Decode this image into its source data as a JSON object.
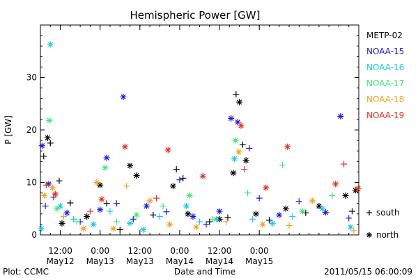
{
  "chart_data": {
    "type": "scatter",
    "title": "Hemispheric Power [GW]",
    "ylabel": "P [GW]",
    "xlabel": "Date and Time",
    "ylim": [
      0,
      40
    ],
    "yticks": [
      0,
      10,
      20,
      30
    ],
    "x_time_range": [
      "2011-05-11 06:00",
      "2011-05-15 06:00"
    ],
    "xticks": [
      {
        "time": "2011-05-11 12:00",
        "line1": "12:00",
        "line2": "May12"
      },
      {
        "time": "2011-05-12 00:00",
        "line1": "0:00",
        "line2": "May13"
      },
      {
        "time": "2011-05-12 12:00",
        "line1": "12:00",
        "line2": "May13"
      },
      {
        "time": "2011-05-13 00:00",
        "line1": "0:00",
        "line2": "May14"
      },
      {
        "time": "2011-05-13 12:00",
        "line1": "12:00",
        "line2": "May14"
      },
      {
        "time": "2011-05-14 00:00",
        "line1": "0:00",
        "line2": "May15"
      }
    ],
    "legend_placement": "right",
    "marker_legend": [
      {
        "marker": "plus",
        "label": "south"
      },
      {
        "marker": "asterisk",
        "label": "north"
      }
    ],
    "series": [
      {
        "name": "METP-02",
        "color": "#000000",
        "points": [
          {
            "t": "2011-05-11 07:00",
            "v": 15,
            "m": "plus"
          },
          {
            "t": "2011-05-11 08:10",
            "v": 18.5,
            "m": "asterisk"
          },
          {
            "t": "2011-05-11 09:00",
            "v": 17.5,
            "m": "plus"
          },
          {
            "t": "2011-05-11 11:40",
            "v": 10.3,
            "m": "plus"
          },
          {
            "t": "2011-05-11 12:30",
            "v": 2.2,
            "m": "asterisk"
          },
          {
            "t": "2011-05-11 15:00",
            "v": 6.1,
            "m": "plus"
          },
          {
            "t": "2011-05-11 20:00",
            "v": 3.5,
            "m": "asterisk"
          },
          {
            "t": "2011-05-12 02:00",
            "v": 6.0,
            "m": "plus"
          },
          {
            "t": "2011-05-12 00:00",
            "v": 9.5,
            "m": "asterisk"
          },
          {
            "t": "2011-05-12 06:00",
            "v": 1.0,
            "m": "plus"
          },
          {
            "t": "2011-05-12 09:00",
            "v": 13.2,
            "m": "asterisk"
          },
          {
            "t": "2011-05-12 11:00",
            "v": 11.3,
            "m": "asterisk"
          },
          {
            "t": "2011-05-12 16:00",
            "v": 3.8,
            "m": "plus"
          },
          {
            "t": "2011-05-12 22:00",
            "v": 9.3,
            "m": "asterisk"
          },
          {
            "t": "2011-05-12 23:00",
            "v": 12.5,
            "m": "plus"
          },
          {
            "t": "2011-05-13 01:00",
            "v": 10.8,
            "m": "plus"
          },
          {
            "t": "2011-05-13 02:30",
            "v": 4.0,
            "m": "asterisk"
          },
          {
            "t": "2011-05-13 09:00",
            "v": 2.5,
            "m": "plus"
          },
          {
            "t": "2011-05-13 12:00",
            "v": 3.0,
            "m": "asterisk"
          },
          {
            "t": "2011-05-13 14:30",
            "v": 3.3,
            "m": "plus"
          },
          {
            "t": "2011-05-13 16:10",
            "v": 11.8,
            "m": "asterisk"
          },
          {
            "t": "2011-05-13 17:00",
            "v": 26.8,
            "m": "plus"
          },
          {
            "t": "2011-05-13 18:00",
            "v": 25.3,
            "m": "asterisk"
          },
          {
            "t": "2011-05-13 19:00",
            "v": 17.2,
            "m": "plus"
          },
          {
            "t": "2011-05-13 20:00",
            "v": 14.2,
            "m": "asterisk"
          },
          {
            "t": "2011-05-13 23:00",
            "v": 4.0,
            "m": "asterisk"
          },
          {
            "t": "2011-05-14 03:00",
            "v": 2.8,
            "m": "plus"
          },
          {
            "t": "2011-05-14 08:00",
            "v": 5.0,
            "m": "asterisk"
          },
          {
            "t": "2011-05-14 14:00",
            "v": 4.2,
            "m": "plus"
          },
          {
            "t": "2011-05-14 18:00",
            "v": 5.5,
            "m": "asterisk"
          },
          {
            "t": "2011-05-15 02:00",
            "v": 7.5,
            "m": "asterisk"
          },
          {
            "t": "2011-05-15 04:00",
            "v": 4.5,
            "m": "plus"
          },
          {
            "t": "2011-05-15 05:00",
            "v": 8.5,
            "m": "asterisk"
          }
        ]
      },
      {
        "name": "NOAA-15",
        "color": "#1a1ae0",
        "points": [
          {
            "t": "2011-05-11 06:30",
            "v": 17.0,
            "m": "asterisk"
          },
          {
            "t": "2011-05-11 07:30",
            "v": 5.5,
            "m": "plus"
          },
          {
            "t": "2011-05-11 08:30",
            "v": 9.7,
            "m": "asterisk"
          },
          {
            "t": "2011-05-11 10:00",
            "v": 7.2,
            "m": "plus"
          },
          {
            "t": "2011-05-11 14:00",
            "v": 4.2,
            "m": "asterisk"
          },
          {
            "t": "2011-05-11 18:00",
            "v": 2.5,
            "m": "plus"
          },
          {
            "t": "2011-05-12 00:00",
            "v": 4.8,
            "m": "asterisk"
          },
          {
            "t": "2011-05-12 02:00",
            "v": 14.7,
            "m": "asterisk"
          },
          {
            "t": "2011-05-12 05:00",
            "v": 6.0,
            "m": "plus"
          },
          {
            "t": "2011-05-12 07:00",
            "v": 26.3,
            "m": "asterisk"
          },
          {
            "t": "2011-05-12 10:00",
            "v": 3.0,
            "m": "plus"
          },
          {
            "t": "2011-05-12 14:00",
            "v": 5.5,
            "m": "asterisk"
          },
          {
            "t": "2011-05-12 20:00",
            "v": 4.4,
            "m": "plus"
          },
          {
            "t": "2011-05-13 00:00",
            "v": 10.5,
            "m": "plus"
          },
          {
            "t": "2011-05-13 04:00",
            "v": 3.5,
            "m": "asterisk"
          },
          {
            "t": "2011-05-13 08:00",
            "v": 2.0,
            "m": "plus"
          },
          {
            "t": "2011-05-13 12:00",
            "v": 4.5,
            "m": "asterisk"
          },
          {
            "t": "2011-05-13 15:30",
            "v": 22.2,
            "m": "asterisk"
          },
          {
            "t": "2011-05-13 17:30",
            "v": 21.5,
            "m": "asterisk"
          },
          {
            "t": "2011-05-13 21:00",
            "v": 16.5,
            "m": "plus"
          },
          {
            "t": "2011-05-14 00:00",
            "v": 7.0,
            "m": "plus"
          },
          {
            "t": "2011-05-14 06:00",
            "v": 3.8,
            "m": "asterisk"
          },
          {
            "t": "2011-05-14 12:00",
            "v": 6.4,
            "m": "plus"
          },
          {
            "t": "2011-05-14 20:00",
            "v": 4.3,
            "m": "asterisk"
          },
          {
            "t": "2011-05-15 00:30",
            "v": 22.6,
            "m": "asterisk"
          },
          {
            "t": "2011-05-15 03:00",
            "v": 3.2,
            "m": "plus"
          }
        ]
      },
      {
        "name": "NOAA-16",
        "color": "#19c8e8",
        "points": [
          {
            "t": "2011-05-11 06:15",
            "v": 1.2,
            "m": "asterisk"
          },
          {
            "t": "2011-05-11 09:00",
            "v": 36.3,
            "m": "asterisk"
          },
          {
            "t": "2011-05-11 12:00",
            "v": 5.5,
            "m": "asterisk"
          },
          {
            "t": "2011-05-11 16:00",
            "v": 3.0,
            "m": "plus"
          },
          {
            "t": "2011-05-11 22:00",
            "v": 2.0,
            "m": "asterisk"
          },
          {
            "t": "2011-05-12 03:00",
            "v": 4.5,
            "m": "plus"
          },
          {
            "t": "2011-05-12 09:00",
            "v": 2.2,
            "m": "asterisk"
          },
          {
            "t": "2011-05-12 13:00",
            "v": 1.0,
            "m": "asterisk"
          },
          {
            "t": "2011-05-12 18:00",
            "v": 3.5,
            "m": "plus"
          },
          {
            "t": "2011-05-13 02:00",
            "v": 5.5,
            "m": "asterisk"
          },
          {
            "t": "2011-05-13 06:00",
            "v": 2.5,
            "m": "plus"
          },
          {
            "t": "2011-05-13 11:00",
            "v": 3.0,
            "m": "asterisk"
          },
          {
            "t": "2011-05-13 16:30",
            "v": 14.5,
            "m": "asterisk"
          },
          {
            "t": "2011-05-13 22:00",
            "v": 3.0,
            "m": "plus"
          },
          {
            "t": "2011-05-14 04:00",
            "v": 2.2,
            "m": "asterisk"
          },
          {
            "t": "2011-05-14 10:00",
            "v": 3.5,
            "m": "plus"
          },
          {
            "t": "2011-05-14 19:00",
            "v": 5.0,
            "m": "asterisk"
          },
          {
            "t": "2011-05-15 03:30",
            "v": 1.5,
            "m": "asterisk"
          }
        ]
      },
      {
        "name": "NOAA-17",
        "color": "#3ee878",
        "points": [
          {
            "t": "2011-05-11 08:40",
            "v": 21.8,
            "m": "asterisk"
          },
          {
            "t": "2011-05-11 11:00",
            "v": 5.0,
            "m": "asterisk"
          },
          {
            "t": "2011-05-11 17:00",
            "v": 2.5,
            "m": "plus"
          },
          {
            "t": "2011-05-12 01:30",
            "v": 12.8,
            "m": "asterisk"
          },
          {
            "t": "2011-05-12 05:00",
            "v": 2.5,
            "m": "plus"
          },
          {
            "t": "2011-05-12 11:00",
            "v": 3.8,
            "m": "asterisk"
          },
          {
            "t": "2011-05-12 19:00",
            "v": 5.5,
            "m": "plus"
          },
          {
            "t": "2011-05-13 03:00",
            "v": 7.5,
            "m": "asterisk"
          },
          {
            "t": "2011-05-13 10:00",
            "v": 3.0,
            "m": "plus"
          },
          {
            "t": "2011-05-13 16:50",
            "v": 18.0,
            "m": "asterisk"
          },
          {
            "t": "2011-05-13 20:30",
            "v": 8.0,
            "m": "plus"
          },
          {
            "t": "2011-05-14 07:00",
            "v": 13.3,
            "m": "plus"
          },
          {
            "t": "2011-05-14 13:00",
            "v": 4.5,
            "m": "asterisk"
          },
          {
            "t": "2011-05-14 22:00",
            "v": 7.5,
            "m": "plus"
          }
        ]
      },
      {
        "name": "NOAA-18",
        "color": "#f5a020",
        "points": [
          {
            "t": "2011-05-11 07:10",
            "v": 7.5,
            "m": "asterisk"
          },
          {
            "t": "2011-05-11 09:40",
            "v": 9.0,
            "m": "asterisk"
          },
          {
            "t": "2011-05-11 13:00",
            "v": 3.5,
            "m": "plus"
          },
          {
            "t": "2011-05-11 19:00",
            "v": 1.2,
            "m": "asterisk"
          },
          {
            "t": "2011-05-11 23:00",
            "v": 10.0,
            "m": "asterisk"
          },
          {
            "t": "2011-05-12 04:00",
            "v": 1.2,
            "m": "asterisk"
          },
          {
            "t": "2011-05-12 08:00",
            "v": 9.3,
            "m": "plus"
          },
          {
            "t": "2011-05-12 15:00",
            "v": 6.5,
            "m": "asterisk"
          },
          {
            "t": "2011-05-12 21:00",
            "v": 2.0,
            "m": "asterisk"
          },
          {
            "t": "2011-05-13 05:00",
            "v": 1.5,
            "m": "asterisk"
          },
          {
            "t": "2011-05-13 14:00",
            "v": 2.5,
            "m": "plus"
          },
          {
            "t": "2011-05-13 17:50",
            "v": 15.8,
            "m": "asterisk"
          },
          {
            "t": "2011-05-14 01:00",
            "v": 2.0,
            "m": "asterisk"
          },
          {
            "t": "2011-05-14 09:00",
            "v": 1.8,
            "m": "plus"
          },
          {
            "t": "2011-05-14 16:00",
            "v": 6.5,
            "m": "asterisk"
          },
          {
            "t": "2011-05-15 04:30",
            "v": 0.8,
            "m": "plus"
          }
        ]
      },
      {
        "name": "NOAA-19",
        "color": "#e0321e",
        "points": [
          {
            "t": "2011-05-11 07:45",
            "v": 9.5,
            "m": "plus"
          },
          {
            "t": "2011-05-11 10:30",
            "v": 7.8,
            "m": "asterisk"
          },
          {
            "t": "2011-05-11 21:00",
            "v": 4.5,
            "m": "plus"
          },
          {
            "t": "2011-05-12 00:30",
            "v": 6.8,
            "m": "asterisk"
          },
          {
            "t": "2011-05-12 07:30",
            "v": 16.8,
            "m": "asterisk"
          },
          {
            "t": "2011-05-12 17:00",
            "v": 7.0,
            "m": "plus"
          },
          {
            "t": "2011-05-12 20:30",
            "v": 16.2,
            "m": "asterisk"
          },
          {
            "t": "2011-05-13 07:00",
            "v": 11.2,
            "m": "asterisk"
          },
          {
            "t": "2011-05-13 18:30",
            "v": 20.8,
            "m": "asterisk"
          },
          {
            "t": "2011-05-13 19:30",
            "v": 12.5,
            "m": "plus"
          },
          {
            "t": "2011-05-14 02:00",
            "v": 9.0,
            "m": "asterisk"
          },
          {
            "t": "2011-05-14 08:30",
            "v": 16.8,
            "m": "asterisk"
          },
          {
            "t": "2011-05-14 23:00",
            "v": 9.7,
            "m": "asterisk"
          },
          {
            "t": "2011-05-15 01:30",
            "v": 13.5,
            "m": "plus"
          },
          {
            "t": "2011-05-15 05:45",
            "v": 8.8,
            "m": "asterisk"
          }
        ]
      }
    ]
  },
  "footer": {
    "left": "Plot: CCMC",
    "right": "2011/05/15 06:00:09"
  }
}
